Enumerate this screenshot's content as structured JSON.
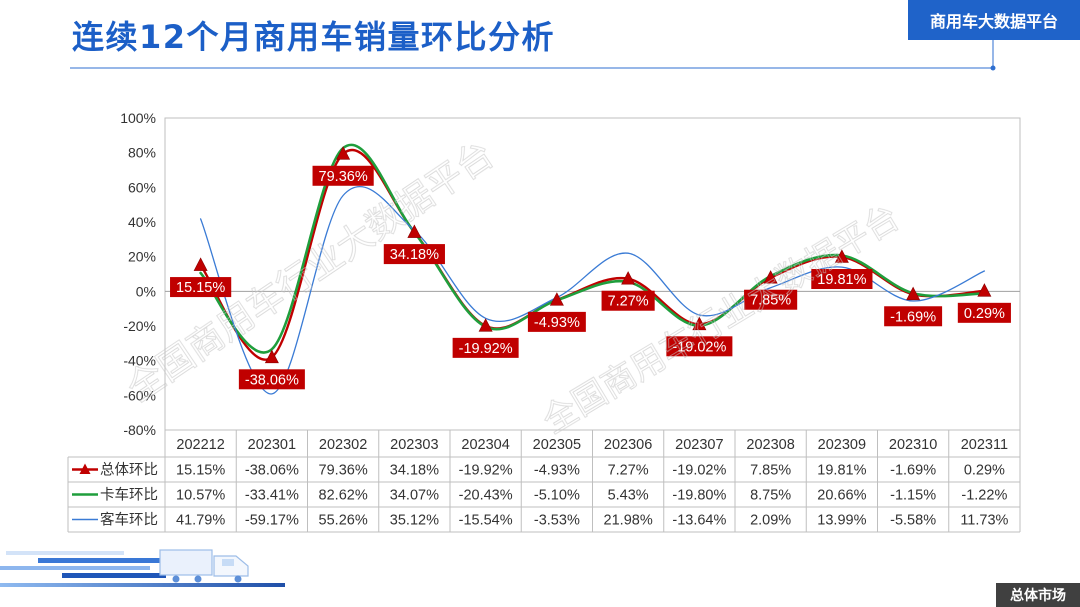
{
  "header": {
    "title": "连续12个月商用车销量环比分析",
    "badge": "商用车大数据平台"
  },
  "footer": {
    "badge": "总体市场"
  },
  "watermark": {
    "text": "全国商用车行业大数据平台"
  },
  "colors": {
    "title": "#1c5fc7",
    "badge_bg": "#1f63c9",
    "footer_bg": "#404040",
    "data_label_bg": "#c00000",
    "grid_border": "#bfbfbf"
  },
  "chart_data": {
    "type": "line",
    "smooth": true,
    "categories": [
      "202212",
      "202301",
      "202302",
      "202303",
      "202304",
      "202305",
      "202306",
      "202307",
      "202308",
      "202309",
      "202310",
      "202311"
    ],
    "ylim": [
      -80,
      100
    ],
    "y_ticks": [
      100,
      80,
      60,
      40,
      20,
      0,
      -20,
      -40,
      -60,
      -80
    ],
    "unit_suffix": "%",
    "grid": false,
    "legend": "data-table",
    "series": [
      {
        "name": "总体环比",
        "color": "#c00000",
        "marker": "triangle",
        "data_labels": true,
        "values": [
          15.15,
          -38.06,
          79.36,
          34.18,
          -19.92,
          -4.93,
          7.27,
          -19.02,
          7.85,
          19.81,
          -1.69,
          0.29
        ]
      },
      {
        "name": "卡车环比",
        "color": "#1f9e3c",
        "marker": "none",
        "data_labels": false,
        "values": [
          10.57,
          -33.41,
          82.62,
          34.07,
          -20.43,
          -5.1,
          5.43,
          -19.8,
          8.75,
          20.66,
          -1.15,
          -1.22
        ]
      },
      {
        "name": "客车环比",
        "color": "#3a7bd5",
        "marker": "none",
        "data_labels": false,
        "values": [
          41.79,
          -59.17,
          55.26,
          35.12,
          -15.54,
          -3.53,
          21.98,
          -13.64,
          2.09,
          13.99,
          -5.58,
          11.73
        ]
      }
    ]
  }
}
